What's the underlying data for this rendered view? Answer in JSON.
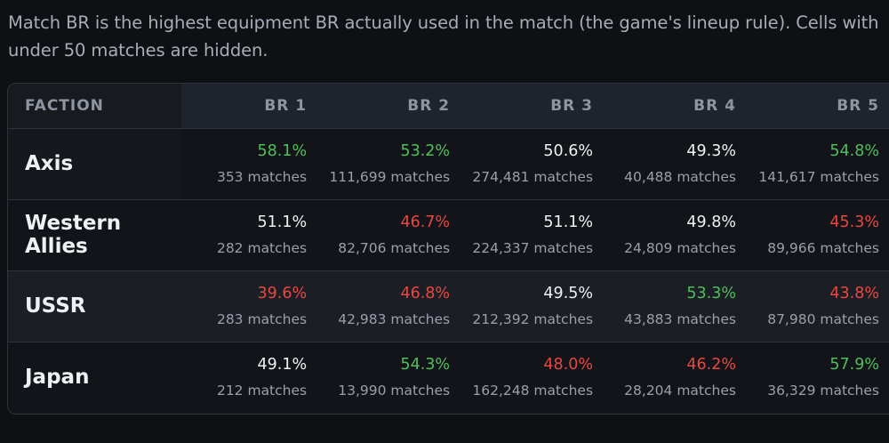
{
  "note": "Match BR is the highest equipment BR actually used in the match (the game's lineup rule). Cells with under 50 matches are hidden.",
  "colors": {
    "good": "#4fbf5a",
    "bad": "#e8483f",
    "neutral": "#eef0f3"
  },
  "table": {
    "headers": [
      "FACTION",
      "BR 1",
      "BR 2",
      "BR 3",
      "BR 4",
      "BR 5"
    ],
    "rows": [
      {
        "faction": "Axis",
        "cells": [
          {
            "pct": "58.1%",
            "count": "353 matches",
            "tone": "good"
          },
          {
            "pct": "53.2%",
            "count": "111,699 matches",
            "tone": "good"
          },
          {
            "pct": "50.6%",
            "count": "274,481 matches",
            "tone": "neutral"
          },
          {
            "pct": "49.3%",
            "count": "40,488 matches",
            "tone": "neutral"
          },
          {
            "pct": "54.8%",
            "count": "141,617 matches",
            "tone": "good"
          }
        ]
      },
      {
        "faction": "Western Allies",
        "cells": [
          {
            "pct": "51.1%",
            "count": "282 matches",
            "tone": "neutral"
          },
          {
            "pct": "46.7%",
            "count": "82,706 matches",
            "tone": "bad"
          },
          {
            "pct": "51.1%",
            "count": "224,337 matches",
            "tone": "neutral"
          },
          {
            "pct": "49.8%",
            "count": "24,809 matches",
            "tone": "neutral"
          },
          {
            "pct": "45.3%",
            "count": "89,966 matches",
            "tone": "bad"
          }
        ]
      },
      {
        "faction": "USSR",
        "cells": [
          {
            "pct": "39.6%",
            "count": "283 matches",
            "tone": "bad"
          },
          {
            "pct": "46.8%",
            "count": "42,983 matches",
            "tone": "bad"
          },
          {
            "pct": "49.5%",
            "count": "212,392 matches",
            "tone": "neutral"
          },
          {
            "pct": "53.3%",
            "count": "43,883 matches",
            "tone": "good"
          },
          {
            "pct": "43.8%",
            "count": "87,980 matches",
            "tone": "bad"
          }
        ]
      },
      {
        "faction": "Japan",
        "cells": [
          {
            "pct": "49.1%",
            "count": "212 matches",
            "tone": "neutral"
          },
          {
            "pct": "54.3%",
            "count": "13,990 matches",
            "tone": "good"
          },
          {
            "pct": "48.0%",
            "count": "162,248 matches",
            "tone": "bad"
          },
          {
            "pct": "46.2%",
            "count": "28,204 matches",
            "tone": "bad"
          },
          {
            "pct": "57.9%",
            "count": "36,329 matches",
            "tone": "good"
          }
        ]
      }
    ]
  }
}
